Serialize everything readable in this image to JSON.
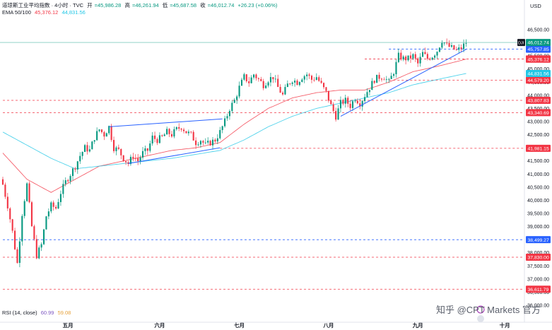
{
  "header": {
    "title": "道琼斯工业平均指数 · 4小时 · TVC",
    "open_label": "开",
    "open": "=45,986.28",
    "high_label": "高",
    "high": "=46,261.94",
    "low_label": "低",
    "low": "=45,687.58",
    "close_label": "收",
    "close": "=46,012.74",
    "change": "+26.23 (+0.06%)",
    "ema_label": "EMA 50/100",
    "ema50": "45,376.12",
    "ema100": "44,831.56"
  },
  "rsi": {
    "label": "RSI (14, close)",
    "value1": "60.99",
    "value2": "59.08"
  },
  "currency": "USD",
  "symbol_tag": "DJI",
  "watermark": "知乎 @CPT Markets 官方",
  "colors": {
    "up": "#089981",
    "down": "#f23645",
    "ema50": "#f23645",
    "ema100": "#22c7e6",
    "trend": "#2962ff",
    "level": "#f23645"
  },
  "chart_data": {
    "type": "candlestick",
    "ylim": [
      36000,
      46500
    ],
    "y_ticks": [
      "46,500.00",
      "46,000.00",
      "45,500.00",
      "45,000.00",
      "44,500.00",
      "44,000.00",
      "43,500.00",
      "43,000.00",
      "42,500.00",
      "42,000.00",
      "41,500.00",
      "41,000.00",
      "40,500.00",
      "40,000.00",
      "39,500.00",
      "39,000.00",
      "38,500.00",
      "38,000.00",
      "37,500.00",
      "37,000.00",
      "36,500.00",
      "36,000.00"
    ],
    "x_ticks": [
      {
        "label": "五月",
        "i": 27
      },
      {
        "label": "六月",
        "i": 65
      },
      {
        "label": "七月",
        "i": 98
      },
      {
        "label": "八月",
        "i": 135
      },
      {
        "label": "九月",
        "i": 172
      },
      {
        "label": "十月",
        "i": 208
      }
    ],
    "bars_total": 215,
    "close_path": [
      [
        0,
        40600
      ],
      [
        2,
        39800
      ],
      [
        4,
        38800
      ],
      [
        6,
        37600
      ],
      [
        8,
        39500
      ],
      [
        10,
        40600
      ],
      [
        12,
        39000
      ],
      [
        14,
        37900
      ],
      [
        16,
        38300
      ],
      [
        18,
        39400
      ],
      [
        20,
        39800
      ],
      [
        22,
        39700
      ],
      [
        24,
        40300
      ],
      [
        26,
        40700
      ],
      [
        28,
        41000
      ],
      [
        30,
        41300
      ],
      [
        32,
        41700
      ],
      [
        34,
        42000
      ],
      [
        36,
        41900
      ],
      [
        38,
        42400
      ],
      [
        40,
        42700
      ],
      [
        42,
        42500
      ],
      [
        44,
        42800
      ],
      [
        46,
        42000
      ],
      [
        48,
        41900
      ],
      [
        50,
        41600
      ],
      [
        52,
        41400
      ],
      [
        54,
        41700
      ],
      [
        56,
        41500
      ],
      [
        58,
        41800
      ],
      [
        60,
        41900
      ],
      [
        62,
        42400
      ],
      [
        64,
        42300
      ],
      [
        66,
        42400
      ],
      [
        68,
        42600
      ],
      [
        70,
        42500
      ],
      [
        72,
        42700
      ],
      [
        74,
        42800
      ],
      [
        76,
        42600
      ],
      [
        78,
        42500
      ],
      [
        80,
        42200
      ],
      [
        82,
        42300
      ],
      [
        84,
        42100
      ],
      [
        86,
        42200
      ],
      [
        88,
        42300
      ],
      [
        90,
        42600
      ],
      [
        92,
        43000
      ],
      [
        94,
        43500
      ],
      [
        96,
        43800
      ],
      [
        98,
        44300
      ],
      [
        100,
        44700
      ],
      [
        102,
        44500
      ],
      [
        104,
        44800
      ],
      [
        106,
        44600
      ],
      [
        108,
        44400
      ],
      [
        110,
        44600
      ],
      [
        112,
        44700
      ],
      [
        114,
        44300
      ],
      [
        116,
        44000
      ],
      [
        118,
        44400
      ],
      [
        120,
        44600
      ],
      [
        122,
        44500
      ],
      [
        124,
        44700
      ],
      [
        126,
        44800
      ],
      [
        128,
        44600
      ],
      [
        130,
        44700
      ],
      [
        132,
        44400
      ],
      [
        134,
        44100
      ],
      [
        136,
        43600
      ],
      [
        138,
        43200
      ],
      [
        140,
        43700
      ],
      [
        142,
        43800
      ],
      [
        144,
        43600
      ],
      [
        146,
        43900
      ],
      [
        148,
        43700
      ],
      [
        150,
        44000
      ],
      [
        152,
        44300
      ],
      [
        154,
        44600
      ],
      [
        156,
        44700
      ],
      [
        158,
        44700
      ],
      [
        160,
        44500
      ],
      [
        162,
        44900
      ],
      [
        164,
        45500
      ],
      [
        166,
        45400
      ],
      [
        168,
        45400
      ],
      [
        170,
        45500
      ],
      [
        172,
        45200
      ],
      [
        174,
        45600
      ],
      [
        176,
        45400
      ],
      [
        178,
        45500
      ],
      [
        180,
        45700
      ],
      [
        182,
        46100
      ],
      [
        184,
        45900
      ],
      [
        186,
        45800
      ],
      [
        188,
        45700
      ],
      [
        190,
        45800
      ],
      [
        192,
        46012.74
      ]
    ],
    "series": [
      {
        "name": "EMA 50",
        "path": [
          [
            0,
            41800
          ],
          [
            10,
            40800
          ],
          [
            20,
            40300
          ],
          [
            30,
            40800
          ],
          [
            40,
            41300
          ],
          [
            50,
            41500
          ],
          [
            60,
            41700
          ],
          [
            70,
            41900
          ],
          [
            80,
            42000
          ],
          [
            90,
            42200
          ],
          [
            100,
            42900
          ],
          [
            110,
            43500
          ],
          [
            120,
            43900
          ],
          [
            130,
            44100
          ],
          [
            140,
            44200
          ],
          [
            150,
            44200
          ],
          [
            160,
            44500
          ],
          [
            170,
            44900
          ],
          [
            180,
            45100
          ],
          [
            192,
            45376.12
          ]
        ]
      },
      {
        "name": "EMA 100",
        "path": [
          [
            0,
            42600
          ],
          [
            10,
            42100
          ],
          [
            20,
            41600
          ],
          [
            30,
            41200
          ],
          [
            40,
            41300
          ],
          [
            50,
            41400
          ],
          [
            60,
            41500
          ],
          [
            70,
            41600
          ],
          [
            80,
            41750
          ],
          [
            90,
            41900
          ],
          [
            100,
            42300
          ],
          [
            110,
            42800
          ],
          [
            120,
            43200
          ],
          [
            130,
            43500
          ],
          [
            140,
            43700
          ],
          [
            150,
            43900
          ],
          [
            160,
            44100
          ],
          [
            170,
            44400
          ],
          [
            180,
            44600
          ],
          [
            192,
            44831.56
          ]
        ]
      }
    ],
    "trend_lines": [
      [
        [
          44,
          42800
        ],
        [
          91,
          43100
        ]
      ],
      [
        [
          52,
          41400
        ],
        [
          90,
          42000
        ]
      ],
      [
        [
          140,
          43200
        ],
        [
          192,
          45750
        ]
      ]
    ],
    "levels": [
      {
        "value": 45757.85,
        "label": "45,757.85",
        "color": "#2962ff",
        "tag": true,
        "from": 160
      },
      {
        "value": 45384.51,
        "label": "45,384.51",
        "color": "#f23645",
        "tag": true,
        "from": 150
      },
      {
        "value": 44579.2,
        "label": "44,579.20",
        "color": "#f23645",
        "tag": true,
        "from": 160
      },
      {
        "value": 43807.83,
        "label": "43,807.83",
        "color": "#f23645",
        "tag": true,
        "from": 0
      },
      {
        "value": 43340.69,
        "label": "43,340.69",
        "color": "#f23645",
        "tag": true,
        "from": 0
      },
      {
        "value": 41981.15,
        "label": "41,981.15",
        "color": "#f23645",
        "tag": true,
        "from": 90
      },
      {
        "value": 38499.27,
        "label": "38,499.27",
        "color": "#2962ff",
        "tag": true,
        "from": 0
      },
      {
        "value": 37830.0,
        "label": "37,830.00",
        "color": "#f23645",
        "tag": true,
        "from": 0
      },
      {
        "value": 36611.79,
        "label": "36,611.79",
        "color": "#f23645",
        "tag": true,
        "from": 0
      }
    ],
    "value_tags": [
      {
        "value": 46012.74,
        "label": "46,012.74",
        "color": "#089981"
      },
      {
        "value": 45376.12,
        "label": "45,376.12",
        "color": "#f23645"
      },
      {
        "value": 44831.56,
        "label": "44,831.56",
        "color": "#22c7e6"
      }
    ]
  }
}
